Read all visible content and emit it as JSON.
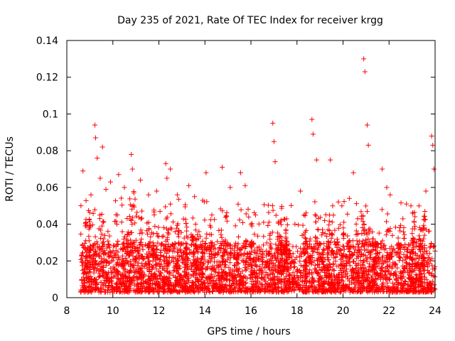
{
  "chart_data": {
    "type": "scatter",
    "title": "Day 235 of 2021, Rate Of TEC Index for receiver krgg",
    "xlabel": "GPS time / hours",
    "ylabel": "ROTI / TECUs",
    "xlim": [
      8,
      24
    ],
    "ylim": [
      0,
      0.14
    ],
    "xticks": [
      8,
      10,
      12,
      14,
      16,
      18,
      20,
      22,
      24
    ],
    "yticks": [
      0,
      0.02,
      0.04,
      0.06,
      0.08,
      0.1,
      0.12,
      0.14
    ],
    "xtick_labels": [
      "8",
      "10",
      "12",
      "14",
      "16",
      "18",
      "20",
      "22",
      "24"
    ],
    "ytick_labels": [
      "0",
      "0.02",
      "0.04",
      "0.06",
      "0.08",
      "0.1",
      "0.12",
      "0.14"
    ],
    "marker": "+",
    "color": "#ff0000",
    "series": [
      {
        "name": "ROTI",
        "x": [
          8.7,
          9.05,
          9.22,
          9.25,
          9.32,
          9.45,
          9.55,
          9.7,
          9.9,
          10.25,
          10.5,
          10.8,
          10.85,
          11.2,
          11.55,
          11.9,
          12.05,
          12.3,
          12.35,
          12.5,
          12.8,
          13.3,
          13.55,
          13.9,
          14.05,
          14.3,
          14.75,
          15.1,
          15.55,
          15.75,
          16.2,
          16.55,
          16.95,
          17.0,
          17.05,
          17.55,
          18.15,
          18.3,
          18.65,
          18.7,
          18.85,
          19.2,
          19.45,
          19.55,
          19.95,
          20.45,
          20.9,
          20.95,
          21.05,
          21.1,
          21.7,
          21.9,
          22.05,
          22.6,
          22.95,
          23.3,
          23.6,
          23.85,
          23.9,
          23.95
        ],
        "y": [
          0.069,
          0.056,
          0.094,
          0.087,
          0.076,
          0.065,
          0.082,
          0.059,
          0.063,
          0.067,
          0.06,
          0.078,
          0.07,
          0.064,
          0.056,
          0.058,
          0.047,
          0.073,
          0.065,
          0.07,
          0.056,
          0.061,
          0.055,
          0.053,
          0.068,
          0.045,
          0.071,
          0.06,
          0.068,
          0.061,
          0.045,
          0.041,
          0.095,
          0.085,
          0.074,
          0.043,
          0.058,
          0.045,
          0.097,
          0.089,
          0.075,
          0.042,
          0.075,
          0.05,
          0.05,
          0.068,
          0.13,
          0.123,
          0.094,
          0.083,
          0.07,
          0.06,
          0.056,
          0.043,
          0.05,
          0.05,
          0.058,
          0.088,
          0.083,
          0.07
        ],
        "extent": [
          8.6,
          24.0
        ],
        "typical_y_range": [
          0.003,
          0.03
        ]
      }
    ]
  }
}
